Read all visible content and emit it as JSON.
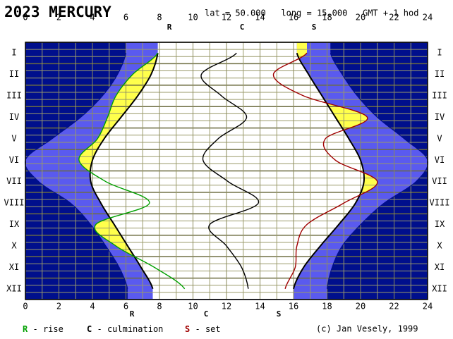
{
  "chart_data": {
    "type": "line",
    "title": "2023 MERCURY",
    "location": "lat = 50.000   long = 15.000   GMT + 1 hod",
    "copyright": "(c) Jan Vesely, 1999",
    "legend_separator": "-",
    "categories": [
      "I",
      "II",
      "III",
      "IV",
      "V",
      "VI",
      "VII",
      "VIII",
      "IX",
      "X",
      "XI",
      "XII"
    ],
    "xlim": [
      0,
      24
    ],
    "xticks": [
      0,
      2,
      4,
      6,
      8,
      10,
      12,
      14,
      16,
      18,
      20,
      22,
      24
    ],
    "grid": true,
    "series": [
      {
        "letter": "R",
        "name": "rise",
        "color": "#00a000",
        "values": [
          7.9,
          6.4,
          5.4,
          4.9,
          4.3,
          3.2,
          4.8,
          7.4,
          4.2,
          5.4,
          7.7,
          9.5
        ]
      },
      {
        "letter": "C",
        "name": "culmination",
        "color": "#000000",
        "values": [
          12.6,
          10.5,
          11.7,
          13.2,
          11.5,
          10.6,
          12.1,
          13.9,
          11.0,
          12.0,
          12.9,
          13.3
        ]
      },
      {
        "letter": "S",
        "name": "set",
        "color": "#a00000",
        "values": [
          16.8,
          14.8,
          16.6,
          20.4,
          17.9,
          18.5,
          21.0,
          19.0,
          16.8,
          16.2,
          16.1,
          15.5
        ]
      }
    ],
    "sun": {
      "dawn": [
        6.0,
        5.5,
        4.6,
        3.3,
        1.6,
        0,
        0.8,
        2.7,
        3.9,
        4.8,
        5.6,
        6.1
      ],
      "sunrise": [
        7.9,
        7.5,
        6.7,
        5.7,
        4.7,
        4.0,
        3.9,
        4.5,
        5.3,
        6.1,
        6.9,
        7.6
      ],
      "sunset": [
        16.2,
        16.9,
        17.7,
        18.5,
        19.3,
        20.0,
        20.2,
        19.7,
        18.7,
        17.6,
        16.6,
        16.0
      ],
      "dusk": [
        18.2,
        18.9,
        19.8,
        21.0,
        22.6,
        24,
        23.3,
        21.4,
        20.0,
        18.9,
        18.3,
        18.0
      ],
      "night_color": "#000f8c",
      "twilight_color": "#5a5aef",
      "visible_color": "#ffff4c"
    }
  }
}
